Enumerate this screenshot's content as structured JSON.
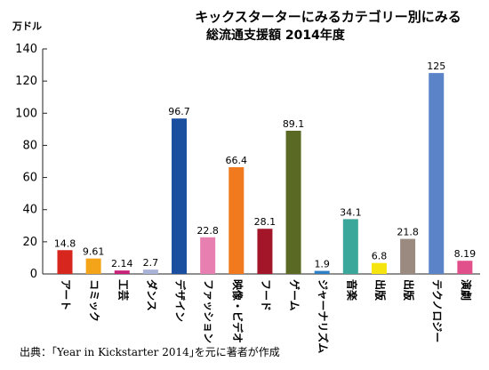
{
  "chart_data": {
    "type": "bar",
    "title": "キックスターターにみるカテゴリー別にみる",
    "subtitle": "総流通支援額 2014年度",
    "ylabel": "万ドル",
    "ylim": [
      0,
      140
    ],
    "yticks": [
      0,
      20,
      40,
      60,
      80,
      100,
      120,
      140
    ],
    "grid": false,
    "categories": [
      "アート",
      "コミック",
      "工芸",
      "ダンス",
      "デザイン",
      "ファッション",
      "映像・ビデオ",
      "フード",
      "ゲーム",
      "ジャーナリズム",
      "音楽",
      "出版",
      "出版",
      "テクノロジー",
      "演劇"
    ],
    "values": [
      14.8,
      9.61,
      2.14,
      2.7,
      96.7,
      22.8,
      66.4,
      28.1,
      89.1,
      1.9,
      34.1,
      6.8,
      21.8,
      125,
      8.19
    ],
    "value_labels": [
      "14.8",
      "9.61",
      "2.14",
      "2.7",
      "96.7",
      "22.8",
      "66.4",
      "28.1",
      "89.1",
      "1.9",
      "34.1",
      "6.8",
      "21.8",
      "125",
      "8.19"
    ],
    "colors": [
      "#d7261e",
      "#f4a419",
      "#c8227a",
      "#a9b3d8",
      "#1a4fa0",
      "#e77fb0",
      "#f07a1d",
      "#a3162a",
      "#5a6a24",
      "#2f7fc5",
      "#3aa79a",
      "#f5e40e",
      "#9a8a80",
      "#5b84c8",
      "#e2508c"
    ]
  },
  "source": "出典：｢Year in Kickstarter 2014｣を元に著者が作成"
}
